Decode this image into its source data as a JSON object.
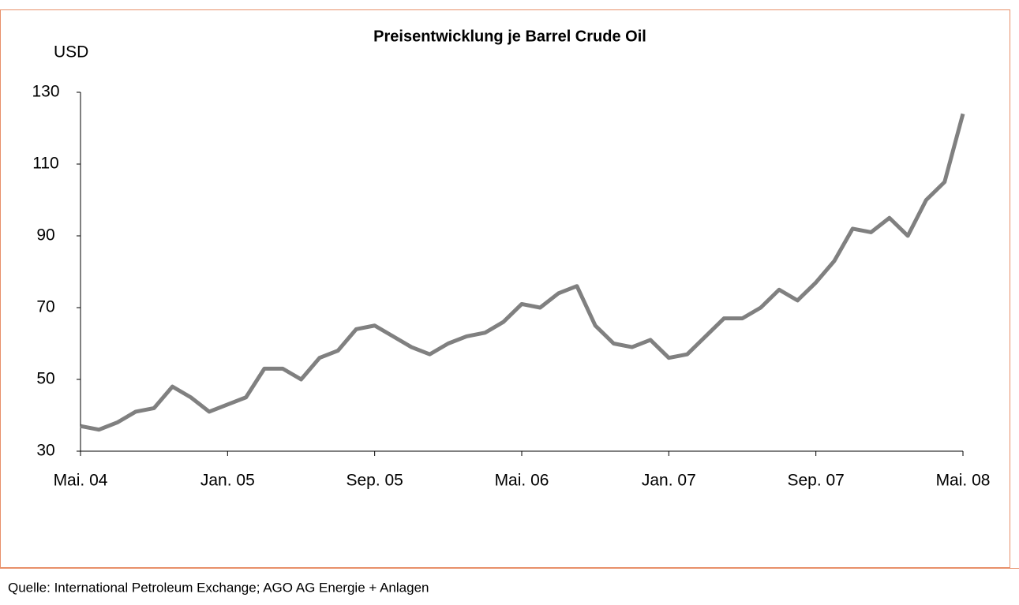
{
  "chart_data": {
    "type": "line",
    "title": "Preisentwicklung je Barrel Crude Oil",
    "y_label": "USD",
    "source": "Quelle: International Petroleum Exchange; AGO AG Energie + Anlagen",
    "categories": [
      "Mai. 04",
      null,
      null,
      null,
      null,
      null,
      null,
      null,
      "Jan. 05",
      null,
      null,
      null,
      null,
      null,
      null,
      null,
      "Sep. 05",
      null,
      null,
      null,
      null,
      null,
      null,
      null,
      "Mai. 06",
      null,
      null,
      null,
      null,
      null,
      null,
      null,
      "Jan. 07",
      null,
      null,
      null,
      null,
      null,
      null,
      null,
      "Sep. 07",
      null,
      null,
      null,
      null,
      null,
      null,
      null,
      "Mai. 08"
    ],
    "series": [
      {
        "name": "Crude Oil",
        "color": "#808080",
        "values": [
          37,
          36,
          38,
          41,
          42,
          48,
          45,
          41,
          43,
          45,
          53,
          53,
          50,
          56,
          58,
          64,
          65,
          62,
          59,
          57,
          60,
          62,
          63,
          66,
          71,
          70,
          74,
          76,
          65,
          60,
          59,
          61,
          56,
          57,
          62,
          67,
          67,
          70,
          75,
          72,
          77,
          83,
          92,
          91,
          95,
          90,
          100,
          105,
          124
        ]
      }
    ],
    "ylim": [
      30,
      130
    ],
    "yticks": [
      30,
      50,
      70,
      90,
      110,
      130
    ]
  }
}
